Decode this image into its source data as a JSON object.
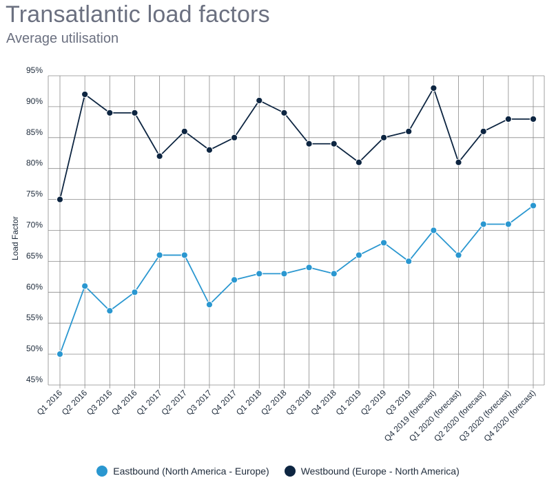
{
  "header": {
    "title": "Transatlantic load factors",
    "subtitle": "Average utilisation"
  },
  "colors": {
    "eastbound": "#2a97d0",
    "westbound": "#0d2541",
    "grid": "#8a8a8a"
  },
  "chart_data": {
    "type": "line",
    "title": "Transatlantic load factors",
    "subtitle": "Average utilisation",
    "xlabel": "",
    "ylabel": "Load Factor",
    "ylim": [
      45,
      95
    ],
    "yticks": [
      45,
      50,
      55,
      60,
      65,
      70,
      75,
      80,
      85,
      90,
      95
    ],
    "ytick_suffix": "%",
    "grid": true,
    "legend_position": "bottom-center",
    "categories": [
      "Q1 2016",
      "Q2 2016",
      "Q3 2016",
      "Q4 2016",
      "Q1 2017",
      "Q2 2017",
      "Q3 2017",
      "Q4 2017",
      "Q1 2018",
      "Q2 2018",
      "Q3 2018",
      "Q4 2018",
      "Q1 2019",
      "Q2 2019",
      "Q3 2019",
      "Q4 2019 (forecast)",
      "Q1 2020 (forecast)",
      "Q2 2020 (forecast)",
      "Q3 2020 (forecast)",
      "Q4 2020 (forecast)"
    ],
    "series": [
      {
        "name": "Eastbound (North America - Europe)",
        "color": "#2a97d0",
        "values": [
          50,
          61,
          57,
          60,
          66,
          66,
          58,
          62,
          63,
          63,
          64,
          63,
          66,
          68,
          65,
          70,
          66,
          71,
          71,
          74
        ]
      },
      {
        "name": "Westbound (Europe - North America)",
        "color": "#0d2541",
        "values": [
          75,
          92,
          89,
          89,
          82,
          86,
          83,
          85,
          91,
          89,
          84,
          84,
          81,
          85,
          86,
          93,
          81,
          86,
          88,
          88
        ]
      }
    ]
  }
}
